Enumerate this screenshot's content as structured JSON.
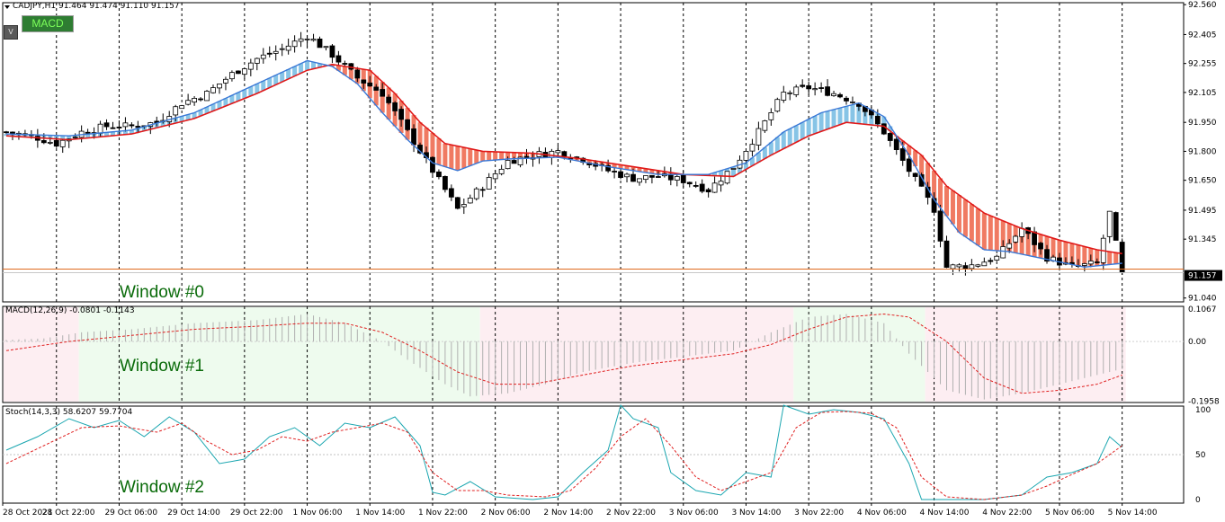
{
  "header": {
    "symbol_info": "CADJPY,H1  91.464 91.474 91.110 91.157",
    "macd_button": "MACD",
    "v_button": "V"
  },
  "windows": [
    "Window #0",
    "Window #1",
    "Window #2"
  ],
  "colors": {
    "bull_candle": "#ffffff",
    "bear_candle": "#000000",
    "ma_fast": "#3a78d6",
    "ma_slow": "#e01818",
    "ribbon_up": "#87c4e6",
    "ribbon_down": "#f07a62",
    "bid_line": "#e06a1e",
    "macd_hist": "#b0b0b0",
    "macd_signal": "#e02020",
    "stoch_main": "#1aa6b0",
    "stoch_signal": "#e02020",
    "macd_zone_pos": "#eefbee",
    "macd_zone_neg": "#fdeef2"
  },
  "chart_data": [
    {
      "panel": "price",
      "type": "candlestick",
      "title": "CADJPY,H1",
      "ohlc_header": {
        "open": 91.464,
        "high": 91.474,
        "low": 91.11,
        "close": 91.157
      },
      "current_price_label": "91.157",
      "bid_line_value": 91.19,
      "y_tick_labels": [
        "92.560",
        "92.405",
        "92.255",
        "92.105",
        "91.950",
        "91.800",
        "91.650",
        "91.495",
        "91.345",
        "91.157",
        "91.040"
      ],
      "ylim": [
        91.02,
        92.57
      ],
      "x_tick_labels": [
        "28 Oct 2021",
        "28 Oct 22:00",
        "29 Oct 06:00",
        "29 Oct 14:00",
        "29 Oct 22:00",
        "1 Nov 06:00",
        "1 Nov 14:00",
        "1 Nov 22:00",
        "2 Nov 06:00",
        "2 Nov 14:00",
        "2 Nov 22:00",
        "3 Nov 06:00",
        "3 Nov 14:00",
        "3 Nov 22:00",
        "4 Nov 06:00",
        "4 Nov 14:00",
        "4 Nov 22:00",
        "5 Nov 06:00",
        "5 Nov 14:00"
      ],
      "close_path": [
        [
          0,
          91.9
        ],
        [
          4,
          91.88
        ],
        [
          8,
          91.84
        ],
        [
          12,
          91.9
        ],
        [
          16,
          91.93
        ],
        [
          20,
          91.93
        ],
        [
          24,
          91.95
        ],
        [
          28,
          92.05
        ],
        [
          32,
          92.1
        ],
        [
          36,
          92.2
        ],
        [
          40,
          92.28
        ],
        [
          44,
          92.33
        ],
        [
          48,
          92.4
        ],
        [
          52,
          92.3
        ],
        [
          56,
          92.18
        ],
        [
          60,
          92.1
        ],
        [
          64,
          91.9
        ],
        [
          68,
          91.7
        ],
        [
          72,
          91.5
        ],
        [
          76,
          91.62
        ],
        [
          80,
          91.75
        ],
        [
          84,
          91.78
        ],
        [
          88,
          91.8
        ],
        [
          92,
          91.76
        ],
        [
          96,
          91.7
        ],
        [
          100,
          91.66
        ],
        [
          104,
          91.67
        ],
        [
          108,
          91.65
        ],
        [
          112,
          91.6
        ],
        [
          116,
          91.72
        ],
        [
          120,
          91.9
        ],
        [
          124,
          92.1
        ],
        [
          128,
          92.13
        ],
        [
          132,
          92.1
        ],
        [
          136,
          92.05
        ],
        [
          140,
          91.9
        ],
        [
          144,
          91.7
        ],
        [
          148,
          91.5
        ],
        [
          150,
          91.2
        ],
        [
          154,
          91.21
        ],
        [
          158,
          91.25
        ],
        [
          162,
          91.4
        ],
        [
          166,
          91.25
        ],
        [
          170,
          91.2
        ],
        [
          174,
          91.22
        ],
        [
          176,
          91.48
        ],
        [
          178,
          91.16
        ]
      ],
      "series": [
        {
          "name": "",
          "kind": "ma_fast",
          "points": [
            [
              0,
              91.89
            ],
            [
              10,
              91.88
            ],
            [
              20,
              91.91
            ],
            [
              30,
              92.0
            ],
            [
              40,
              92.15
            ],
            [
              48,
              92.27
            ],
            [
              52,
              92.24
            ],
            [
              56,
              92.15
            ],
            [
              60,
              92.0
            ],
            [
              64,
              91.86
            ],
            [
              68,
              91.74
            ],
            [
              72,
              91.7
            ],
            [
              76,
              91.75
            ],
            [
              80,
              91.76
            ],
            [
              88,
              91.77
            ],
            [
              96,
              91.72
            ],
            [
              104,
              91.68
            ],
            [
              112,
              91.68
            ],
            [
              118,
              91.74
            ],
            [
              124,
              91.9
            ],
            [
              130,
              92.0
            ],
            [
              136,
              92.05
            ],
            [
              140,
              91.98
            ],
            [
              144,
              91.78
            ],
            [
              148,
              91.55
            ],
            [
              152,
              91.38
            ],
            [
              156,
              91.29
            ],
            [
              160,
              91.28
            ],
            [
              166,
              91.24
            ],
            [
              172,
              91.2
            ],
            [
              178,
              91.22
            ]
          ]
        },
        {
          "name": "",
          "kind": "ma_slow",
          "points": [
            [
              0,
              91.88
            ],
            [
              10,
              91.86
            ],
            [
              20,
              91.89
            ],
            [
              30,
              91.97
            ],
            [
              40,
              92.1
            ],
            [
              48,
              92.22
            ],
            [
              52,
              92.25
            ],
            [
              58,
              92.22
            ],
            [
              62,
              92.1
            ],
            [
              66,
              91.95
            ],
            [
              70,
              91.84
            ],
            [
              76,
              91.8
            ],
            [
              84,
              91.79
            ],
            [
              92,
              91.76
            ],
            [
              100,
              91.72
            ],
            [
              108,
              91.68
            ],
            [
              116,
              91.67
            ],
            [
              122,
              91.78
            ],
            [
              128,
              91.88
            ],
            [
              134,
              91.95
            ],
            [
              140,
              91.93
            ],
            [
              146,
              91.78
            ],
            [
              150,
              91.62
            ],
            [
              156,
              91.48
            ],
            [
              162,
              91.4
            ],
            [
              168,
              91.34
            ],
            [
              174,
              91.29
            ],
            [
              178,
              91.27
            ]
          ]
        }
      ]
    },
    {
      "panel": "macd",
      "type": "bar",
      "title": "MACD(12,26,9) -0.0801 -0.1143",
      "y_tick_labels": [
        "0.1067",
        "0.00",
        "-0.1958"
      ],
      "ylim": [
        -0.2,
        0.115
      ],
      "hist_path": [
        [
          0,
          0.005
        ],
        [
          6,
          0.01
        ],
        [
          12,
          0.03
        ],
        [
          20,
          0.04
        ],
        [
          30,
          0.06
        ],
        [
          40,
          0.07
        ],
        [
          48,
          0.09
        ],
        [
          54,
          0.06
        ],
        [
          60,
          0.0
        ],
        [
          64,
          -0.06
        ],
        [
          70,
          -0.14
        ],
        [
          74,
          -0.18
        ],
        [
          80,
          -0.17
        ],
        [
          86,
          -0.14
        ],
        [
          92,
          -0.1
        ],
        [
          100,
          -0.07
        ],
        [
          108,
          -0.05
        ],
        [
          116,
          -0.03
        ],
        [
          122,
          0.03
        ],
        [
          128,
          0.08
        ],
        [
          134,
          0.09
        ],
        [
          140,
          0.06
        ],
        [
          144,
          -0.04
        ],
        [
          150,
          -0.16
        ],
        [
          156,
          -0.19
        ],
        [
          162,
          -0.17
        ],
        [
          170,
          -0.13
        ],
        [
          178,
          -0.09
        ]
      ],
      "signal_path": [
        [
          0,
          -0.03
        ],
        [
          10,
          0.0
        ],
        [
          20,
          0.02
        ],
        [
          30,
          0.04
        ],
        [
          40,
          0.05
        ],
        [
          48,
          0.06
        ],
        [
          54,
          0.06
        ],
        [
          60,
          0.03
        ],
        [
          66,
          -0.03
        ],
        [
          72,
          -0.1
        ],
        [
          78,
          -0.14
        ],
        [
          84,
          -0.14
        ],
        [
          92,
          -0.11
        ],
        [
          100,
          -0.08
        ],
        [
          108,
          -0.06
        ],
        [
          116,
          -0.04
        ],
        [
          122,
          -0.01
        ],
        [
          128,
          0.04
        ],
        [
          134,
          0.08
        ],
        [
          140,
          0.09
        ],
        [
          144,
          0.08
        ],
        [
          150,
          0.0
        ],
        [
          156,
          -0.12
        ],
        [
          162,
          -0.17
        ],
        [
          168,
          -0.16
        ],
        [
          174,
          -0.14
        ],
        [
          178,
          -0.11
        ]
      ],
      "zones": [
        [
          "neg",
          0,
          12
        ],
        [
          "pos",
          12,
          76
        ],
        [
          "neg",
          76,
          126
        ],
        [
          "pos",
          126,
          147
        ],
        [
          "neg",
          147,
          179
        ]
      ]
    },
    {
      "panel": "stochastic",
      "type": "line",
      "title": "Stoch(14,3,3) 58.6207 59.7704",
      "y_tick_labels": [
        "100",
        "50",
        "0"
      ],
      "ylim": [
        -4,
        104
      ],
      "series": [
        {
          "name": "",
          "kind": "stoch_main",
          "points": [
            [
              0,
              55
            ],
            [
              5,
              70
            ],
            [
              10,
              90
            ],
            [
              14,
              80
            ],
            [
              18,
              88
            ],
            [
              22,
              70
            ],
            [
              26,
              92
            ],
            [
              30,
              75
            ],
            [
              34,
              40
            ],
            [
              38,
              45
            ],
            [
              42,
              70
            ],
            [
              46,
              80
            ],
            [
              50,
              60
            ],
            [
              54,
              85
            ],
            [
              58,
              80
            ],
            [
              62,
              92
            ],
            [
              66,
              60
            ],
            [
              68,
              8
            ],
            [
              70,
              5
            ],
            [
              74,
              20
            ],
            [
              78,
              3
            ],
            [
              84,
              0
            ],
            [
              88,
              3
            ],
            [
              92,
              30
            ],
            [
              96,
              55
            ],
            [
              98,
              105
            ],
            [
              100,
              90
            ],
            [
              104,
              80
            ],
            [
              106,
              30
            ],
            [
              110,
              10
            ],
            [
              114,
              5
            ],
            [
              118,
              30
            ],
            [
              122,
              25
            ],
            [
              124,
              105
            ],
            [
              128,
              95
            ],
            [
              132,
              100
            ],
            [
              136,
              97
            ],
            [
              140,
              90
            ],
            [
              144,
              40
            ],
            [
              146,
              0
            ],
            [
              150,
              0
            ],
            [
              156,
              0
            ],
            [
              162,
              5
            ],
            [
              166,
              25
            ],
            [
              170,
              30
            ],
            [
              174,
              40
            ],
            [
              176,
              70
            ],
            [
              178,
              58
            ]
          ]
        },
        {
          "name": "",
          "kind": "stoch_signal",
          "points": [
            [
              0,
              40
            ],
            [
              6,
              60
            ],
            [
              12,
              80
            ],
            [
              18,
              82
            ],
            [
              24,
              75
            ],
            [
              28,
              85
            ],
            [
              32,
              65
            ],
            [
              36,
              50
            ],
            [
              40,
              55
            ],
            [
              44,
              70
            ],
            [
              48,
              65
            ],
            [
              52,
              75
            ],
            [
              56,
              80
            ],
            [
              60,
              85
            ],
            [
              64,
              75
            ],
            [
              68,
              30
            ],
            [
              72,
              10
            ],
            [
              76,
              10
            ],
            [
              80,
              5
            ],
            [
              86,
              3
            ],
            [
              90,
              10
            ],
            [
              94,
              35
            ],
            [
              98,
              70
            ],
            [
              102,
              90
            ],
            [
              106,
              60
            ],
            [
              110,
              25
            ],
            [
              114,
              10
            ],
            [
              118,
              20
            ],
            [
              122,
              30
            ],
            [
              126,
              80
            ],
            [
              130,
              97
            ],
            [
              134,
              98
            ],
            [
              138,
              96
            ],
            [
              142,
              80
            ],
            [
              146,
              25
            ],
            [
              150,
              3
            ],
            [
              156,
              0
            ],
            [
              162,
              5
            ],
            [
              166,
              15
            ],
            [
              170,
              28
            ],
            [
              174,
              40
            ],
            [
              178,
              60
            ]
          ]
        }
      ]
    }
  ]
}
